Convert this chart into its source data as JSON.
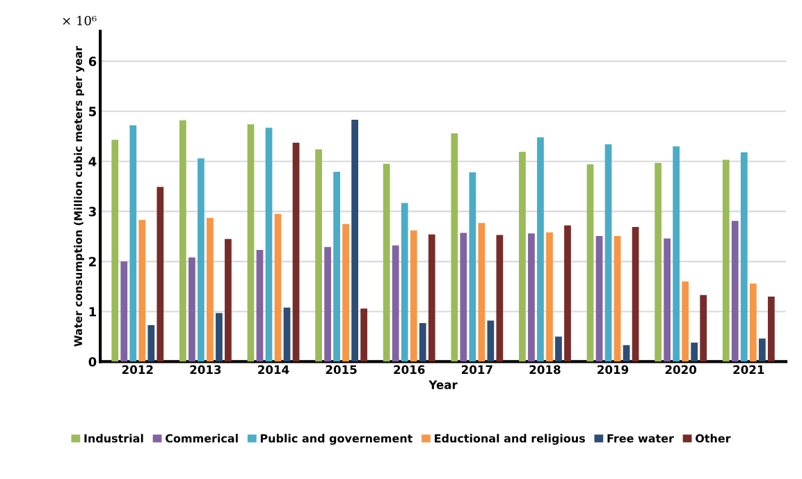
{
  "chart_data": {
    "type": "bar",
    "xlabel": "Year",
    "ylabel": "Water consumption (Million cubic meters per year",
    "annotations": [
      "× 10⁶"
    ],
    "categories": [
      "2012",
      "2013",
      "2014",
      "2015",
      "2016",
      "2017",
      "2018",
      "2019",
      "2020",
      "2021"
    ],
    "series": [
      {
        "name": "Industrial",
        "color": "#9bbb59",
        "values": [
          4.43,
          4.82,
          4.74,
          4.24,
          3.95,
          4.56,
          4.19,
          3.94,
          3.97,
          4.03
        ]
      },
      {
        "name": "Commerical",
        "color": "#8064a2",
        "values": [
          2.0,
          2.08,
          2.23,
          2.29,
          2.32,
          2.57,
          2.56,
          2.51,
          2.46,
          2.81
        ]
      },
      {
        "name": "Public and governement",
        "color": "#4bacc6",
        "values": [
          4.72,
          4.06,
          4.67,
          3.79,
          3.17,
          3.78,
          4.48,
          4.34,
          4.3,
          4.18
        ]
      },
      {
        "name": "Eductional and religious",
        "color": "#f79646",
        "values": [
          2.83,
          2.87,
          2.95,
          2.75,
          2.62,
          2.77,
          2.58,
          2.51,
          1.6,
          1.56
        ]
      },
      {
        "name": "Free water",
        "color": "#2c4d75",
        "values": [
          0.73,
          0.97,
          1.08,
          4.83,
          0.77,
          0.82,
          0.5,
          0.33,
          0.38,
          0.46
        ]
      },
      {
        "name": "Other",
        "color": "#772c2a",
        "values": [
          3.49,
          2.45,
          4.37,
          1.06,
          2.54,
          2.53,
          2.72,
          2.69,
          1.33,
          1.3
        ]
      }
    ],
    "ylim": [
      0,
      6.6
    ],
    "yticks": [
      0,
      1,
      2,
      3,
      4,
      5,
      6
    ],
    "grid": "y",
    "legend": "bottom"
  }
}
